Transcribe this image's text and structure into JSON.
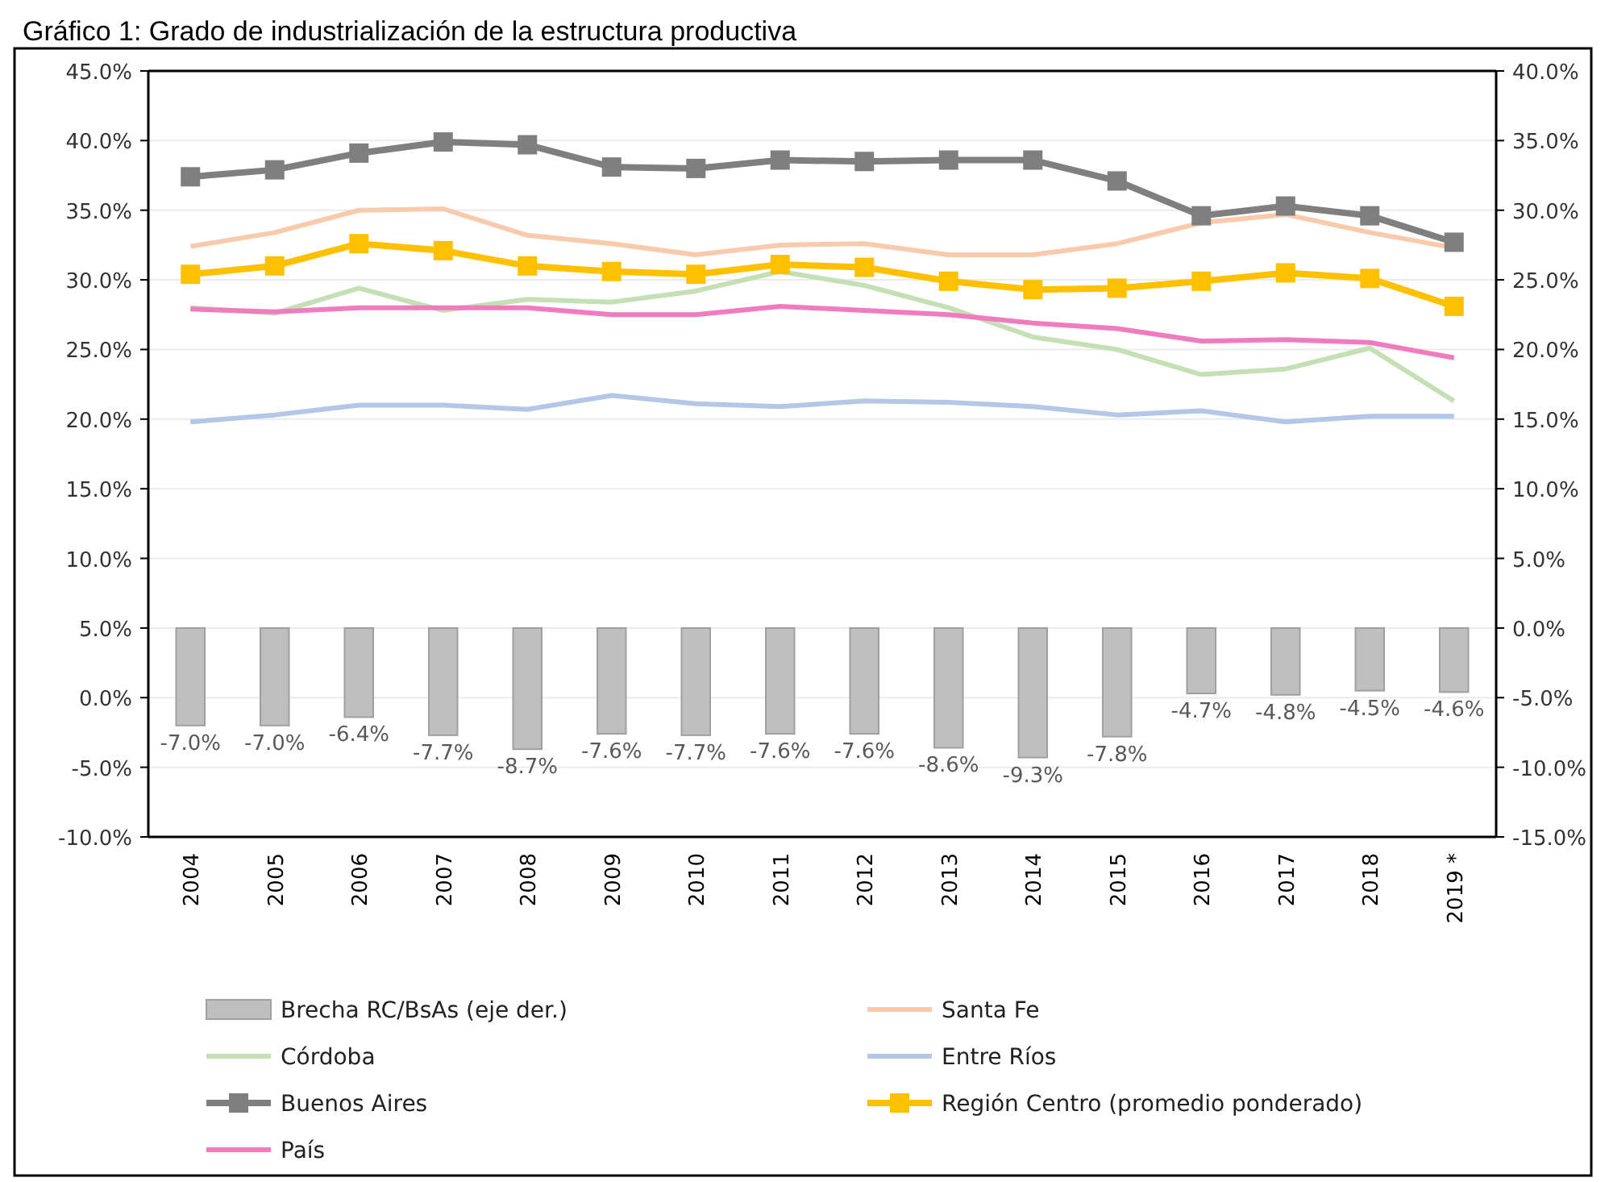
{
  "chart_data": {
    "type": "line",
    "title": "Gráfico 1: Grado de industrialización de la estructura productiva",
    "categories": [
      "2004",
      "2005",
      "2006",
      "2007",
      "2008",
      "2009",
      "2010",
      "2011",
      "2012",
      "2013",
      "2014",
      "2015",
      "2016",
      "2017",
      "2018",
      "2019 *"
    ],
    "ylim": [
      -10,
      45
    ],
    "yticks": [
      {
        "value": -10,
        "label": "-10.0%"
      },
      {
        "value": -5,
        "label": "-5.0%"
      },
      {
        "value": 0,
        "label": "0.0%"
      },
      {
        "value": 5,
        "label": "5.0%"
      },
      {
        "value": 10,
        "label": "10.0%"
      },
      {
        "value": 15,
        "label": "15.0%"
      },
      {
        "value": 20,
        "label": "20.0%"
      },
      {
        "value": 25,
        "label": "25.0%"
      },
      {
        "value": 30,
        "label": "30.0%"
      },
      {
        "value": 35,
        "label": "35.0%"
      },
      {
        "value": 40,
        "label": "40.0%"
      },
      {
        "value": 45,
        "label": "45.0%"
      }
    ],
    "y2lim": [
      -15,
      40
    ],
    "y2ticks": [
      {
        "value": -15,
        "label": "-15.0%"
      },
      {
        "value": -10,
        "label": "-10.0%"
      },
      {
        "value": -5,
        "label": "-5.0%"
      },
      {
        "value": 0,
        "label": "0.0%"
      },
      {
        "value": 5,
        "label": "5.0%"
      },
      {
        "value": 10,
        "label": "10.0%"
      },
      {
        "value": 15,
        "label": "15.0%"
      },
      {
        "value": 20,
        "label": "20.0%"
      },
      {
        "value": 25,
        "label": "25.0%"
      },
      {
        "value": 30,
        "label": "30.0%"
      },
      {
        "value": 35,
        "label": "35.0%"
      },
      {
        "value": 40,
        "label": "40.0%"
      }
    ],
    "grid": "y",
    "legend": "bottom",
    "series": [
      {
        "name": "Brecha RC/BsAs (eje der.)",
        "type": "bar",
        "axis": "y2",
        "color": "#bfbfbf",
        "values": [
          -7.0,
          -7.0,
          -6.4,
          -7.7,
          -8.7,
          -7.6,
          -7.7,
          -7.6,
          -7.6,
          -8.6,
          -9.3,
          -7.8,
          -4.7,
          -4.8,
          -4.5,
          -4.6
        ],
        "value_labels": [
          "-7.0%",
          "-7.0%",
          "-6.4%",
          "-7.7%",
          "-8.7%",
          "-7.6%",
          "-7.7%",
          "-7.6%",
          "-7.6%",
          "-8.6%",
          "-9.3%",
          "-7.8%",
          "-4.7%",
          "-4.8%",
          "-4.5%",
          "-4.6%"
        ]
      },
      {
        "name": "Santa Fe",
        "color": "#f8cbad",
        "marker": "none",
        "values": [
          32.4,
          33.4,
          35.0,
          35.1,
          33.2,
          32.6,
          31.8,
          32.5,
          32.6,
          31.8,
          31.8,
          32.6,
          34.1,
          34.7,
          33.4,
          32.3
        ]
      },
      {
        "name": "Córdoba",
        "color": "#c5e0b4",
        "marker": "none",
        "values": [
          28.0,
          27.6,
          29.4,
          27.8,
          28.6,
          28.4,
          29.2,
          30.6,
          29.6,
          28.0,
          25.9,
          25.0,
          23.2,
          23.6,
          25.1,
          21.3
        ]
      },
      {
        "name": "Entre Ríos",
        "color": "#b4c7e7",
        "marker": "none",
        "values": [
          19.8,
          20.3,
          21.0,
          21.0,
          20.7,
          21.7,
          21.1,
          20.9,
          21.3,
          21.2,
          20.9,
          20.3,
          20.6,
          19.8,
          20.2,
          20.2
        ]
      },
      {
        "name": "Buenos Aires",
        "color": "#7f7f7f",
        "marker": "square",
        "values": [
          37.4,
          37.9,
          39.1,
          39.9,
          39.7,
          38.1,
          38.0,
          38.6,
          38.5,
          38.6,
          38.6,
          37.1,
          34.6,
          35.3,
          34.6,
          32.7
        ]
      },
      {
        "name": "Región Centro (promedio ponderado)",
        "color": "#ffc000",
        "marker": "square",
        "values": [
          30.4,
          31.0,
          32.6,
          32.1,
          31.0,
          30.6,
          30.4,
          31.1,
          30.9,
          29.9,
          29.3,
          29.4,
          29.9,
          30.5,
          30.1,
          28.1
        ]
      },
      {
        "name": "País",
        "color": "#f07cbf",
        "marker": "none",
        "values": [
          27.9,
          27.7,
          28.0,
          28.0,
          28.0,
          27.5,
          27.5,
          28.1,
          27.8,
          27.5,
          26.9,
          26.5,
          25.6,
          25.7,
          25.5,
          24.4
        ]
      }
    ]
  }
}
